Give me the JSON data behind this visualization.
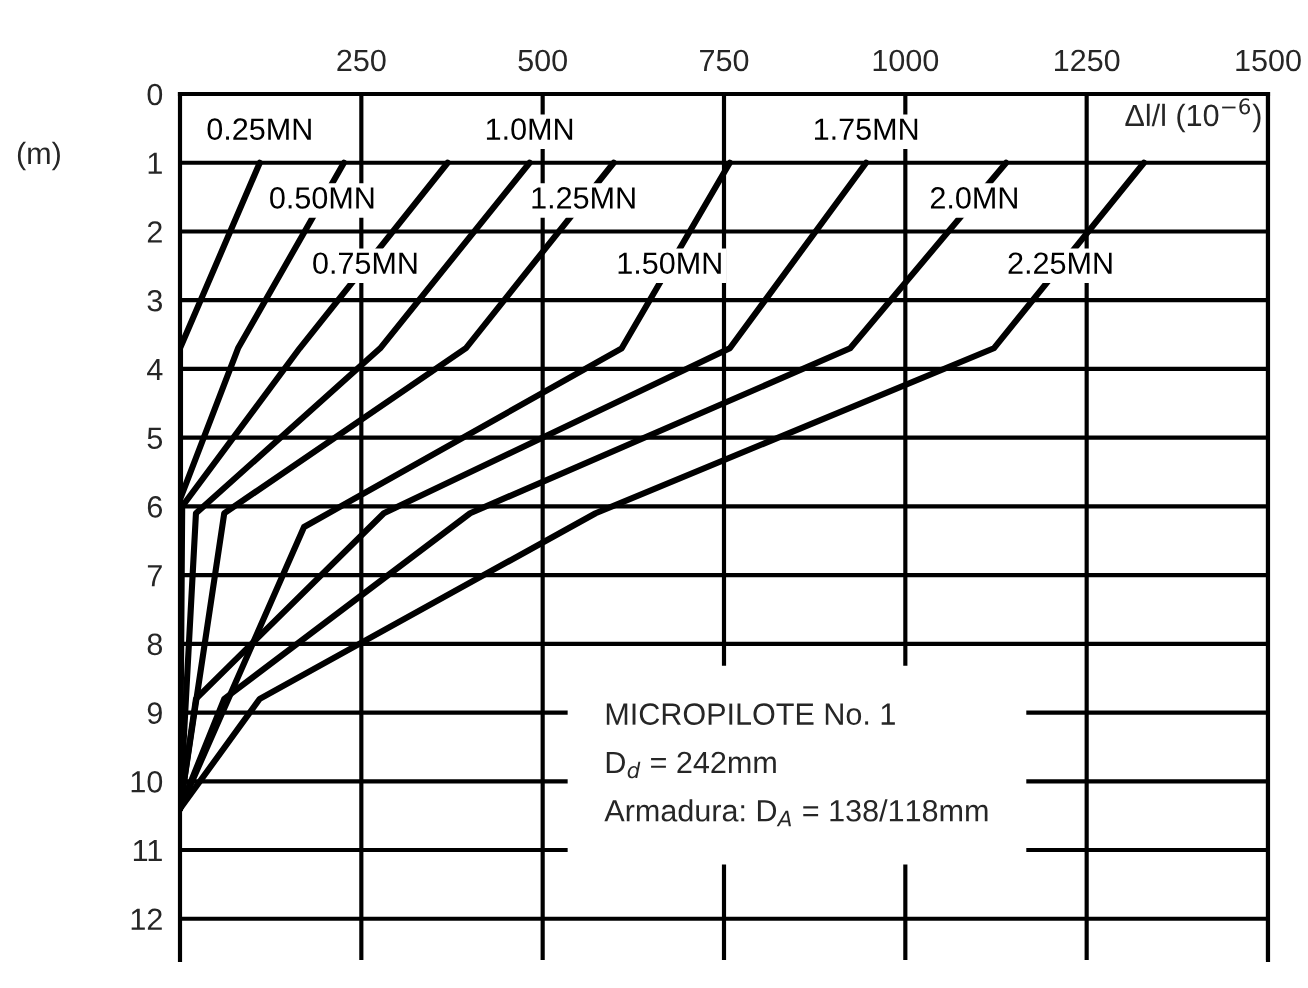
{
  "chart_data": {
    "type": "line",
    "xlabel": "Δl/l (10$^{−6}$)",
    "ylabel": "(m)",
    "xlim": [
      0,
      1500
    ],
    "xticks": [
      250,
      500,
      750,
      1000,
      1250,
      1500
    ],
    "ylim": [
      12.6,
      0
    ],
    "yticks": [
      0,
      1,
      2,
      3,
      4,
      5,
      6,
      7,
      8,
      9,
      10,
      11,
      12
    ],
    "grid": true,
    "legend": false,
    "marker": "none",
    "line_style": "solid",
    "series": [
      {
        "name": "0.25MN",
        "color": "#000000",
        "x": [
          110,
          0,
          0
        ],
        "values": [
          1,
          3.7,
          10.4
        ]
      },
      {
        "name": "0.50MN",
        "color": "#000000",
        "x": [
          226,
          80,
          0,
          0
        ],
        "values": [
          1,
          3.7,
          5.9,
          10.4
        ]
      },
      {
        "name": "0.75MN",
        "color": "#000000",
        "x": [
          369,
          165,
          3,
          0
        ],
        "values": [
          1,
          3.7,
          6.0,
          10.4
        ]
      },
      {
        "name": "1.0MN",
        "color": "#000000",
        "x": [
          482,
          276,
          22,
          0
        ],
        "values": [
          1,
          3.7,
          6.1,
          10.4
        ]
      },
      {
        "name": "1.25MN",
        "color": "#000000",
        "x": [
          598,
          394,
          61,
          0
        ],
        "values": [
          1,
          3.7,
          6.1,
          10.4
        ]
      },
      {
        "name": "1.50MN",
        "color": "#000000",
        "x": [
          758,
          609,
          171,
          0
        ],
        "values": [
          1,
          3.7,
          6.3,
          10.4
        ]
      },
      {
        "name": "1.75MN",
        "color": "#000000",
        "x": [
          946,
          758,
          281,
          22,
          0
        ],
        "values": [
          1,
          3.7,
          6.1,
          8.8,
          10.4
        ]
      },
      {
        "name": "2.0MN",
        "color": "#000000",
        "x": [
          1139,
          924,
          400,
          61,
          0
        ],
        "values": [
          1,
          3.7,
          6.1,
          8.8,
          10.4
        ]
      },
      {
        "name": "2.25MN",
        "color": "#000000",
        "x": [
          1329,
          1122,
          573,
          110,
          0
        ],
        "values": [
          1,
          3.7,
          6.1,
          8.8,
          10.4
        ]
      }
    ],
    "annotations": [
      "MICROPILOTE No. 1\nD$_{d}$ = 242mm\nArmadura: D$_{A}$ = 138/118mm"
    ]
  }
}
